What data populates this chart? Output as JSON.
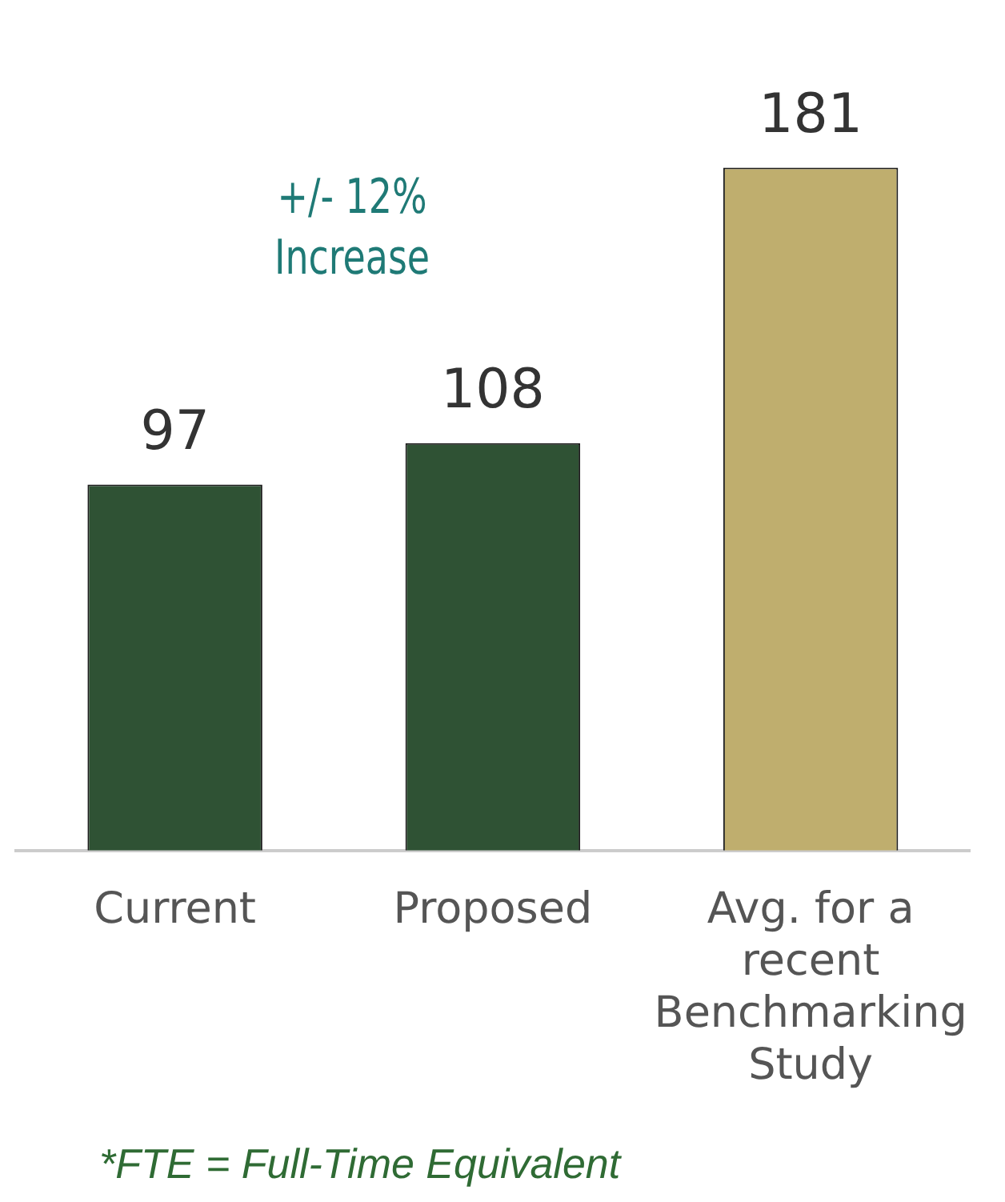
{
  "chart_data": {
    "type": "bar",
    "categories": [
      "Current",
      "Proposed",
      "Avg. for a recent Benchmarking Study"
    ],
    "values": [
      97,
      108,
      181
    ],
    "colors": [
      "#2f5234",
      "#2f5234",
      "#bfae6e"
    ],
    "data_labels": true,
    "grid": false,
    "legend": false,
    "annotations": [
      "+/- 12%\nIncrease",
      "*FTE = Full-Time Equivalent"
    ]
  }
}
